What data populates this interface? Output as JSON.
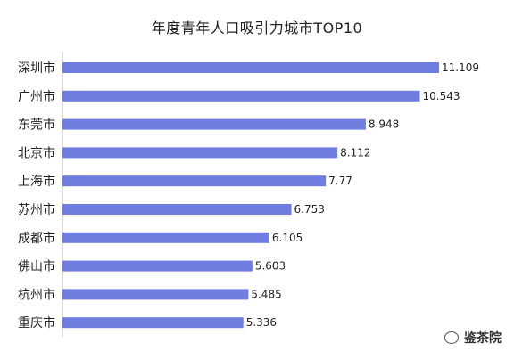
{
  "chart_data": {
    "type": "bar",
    "orientation": "horizontal",
    "title": "年度青年人口吸引力城市TOP10",
    "categories": [
      "深圳市",
      "广州市",
      "东莞市",
      "北京市",
      "上海市",
      "苏州市",
      "成都市",
      "佛山市",
      "杭州市",
      "重庆市"
    ],
    "values": [
      11.109,
      10.543,
      8.948,
      8.112,
      7.77,
      6.753,
      6.105,
      5.603,
      5.485,
      5.336
    ],
    "value_labels": [
      "11.109",
      "10.543",
      "8.948",
      "8.112",
      "7.77",
      "6.753",
      "6.105",
      "5.603",
      "5.485",
      "5.336"
    ],
    "xlabel": "",
    "ylabel": "",
    "xlim": [
      0,
      11.109
    ],
    "grid": false,
    "bar_color": "#6f7de0"
  },
  "watermark": {
    "text": "鉴茶院",
    "icon": "wechat-icon"
  }
}
